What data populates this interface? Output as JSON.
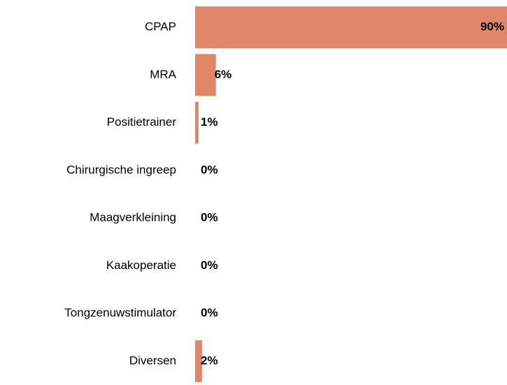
{
  "chart_data": {
    "type": "hbar",
    "categories": [
      "CPAP",
      "MRA",
      "Positietrainer",
      "Chirurgische ingreep",
      "Maagverkleining",
      "Kaakoperatie",
      "Tongzenuwstimulator",
      "Diversen"
    ],
    "values": [
      90,
      6,
      1,
      0,
      0,
      0,
      0,
      2
    ],
    "value_labels": [
      "90%",
      "6%",
      "1%",
      "0%",
      "0%",
      "0%",
      "0%",
      "2%"
    ],
    "color": "#e0876a"
  }
}
